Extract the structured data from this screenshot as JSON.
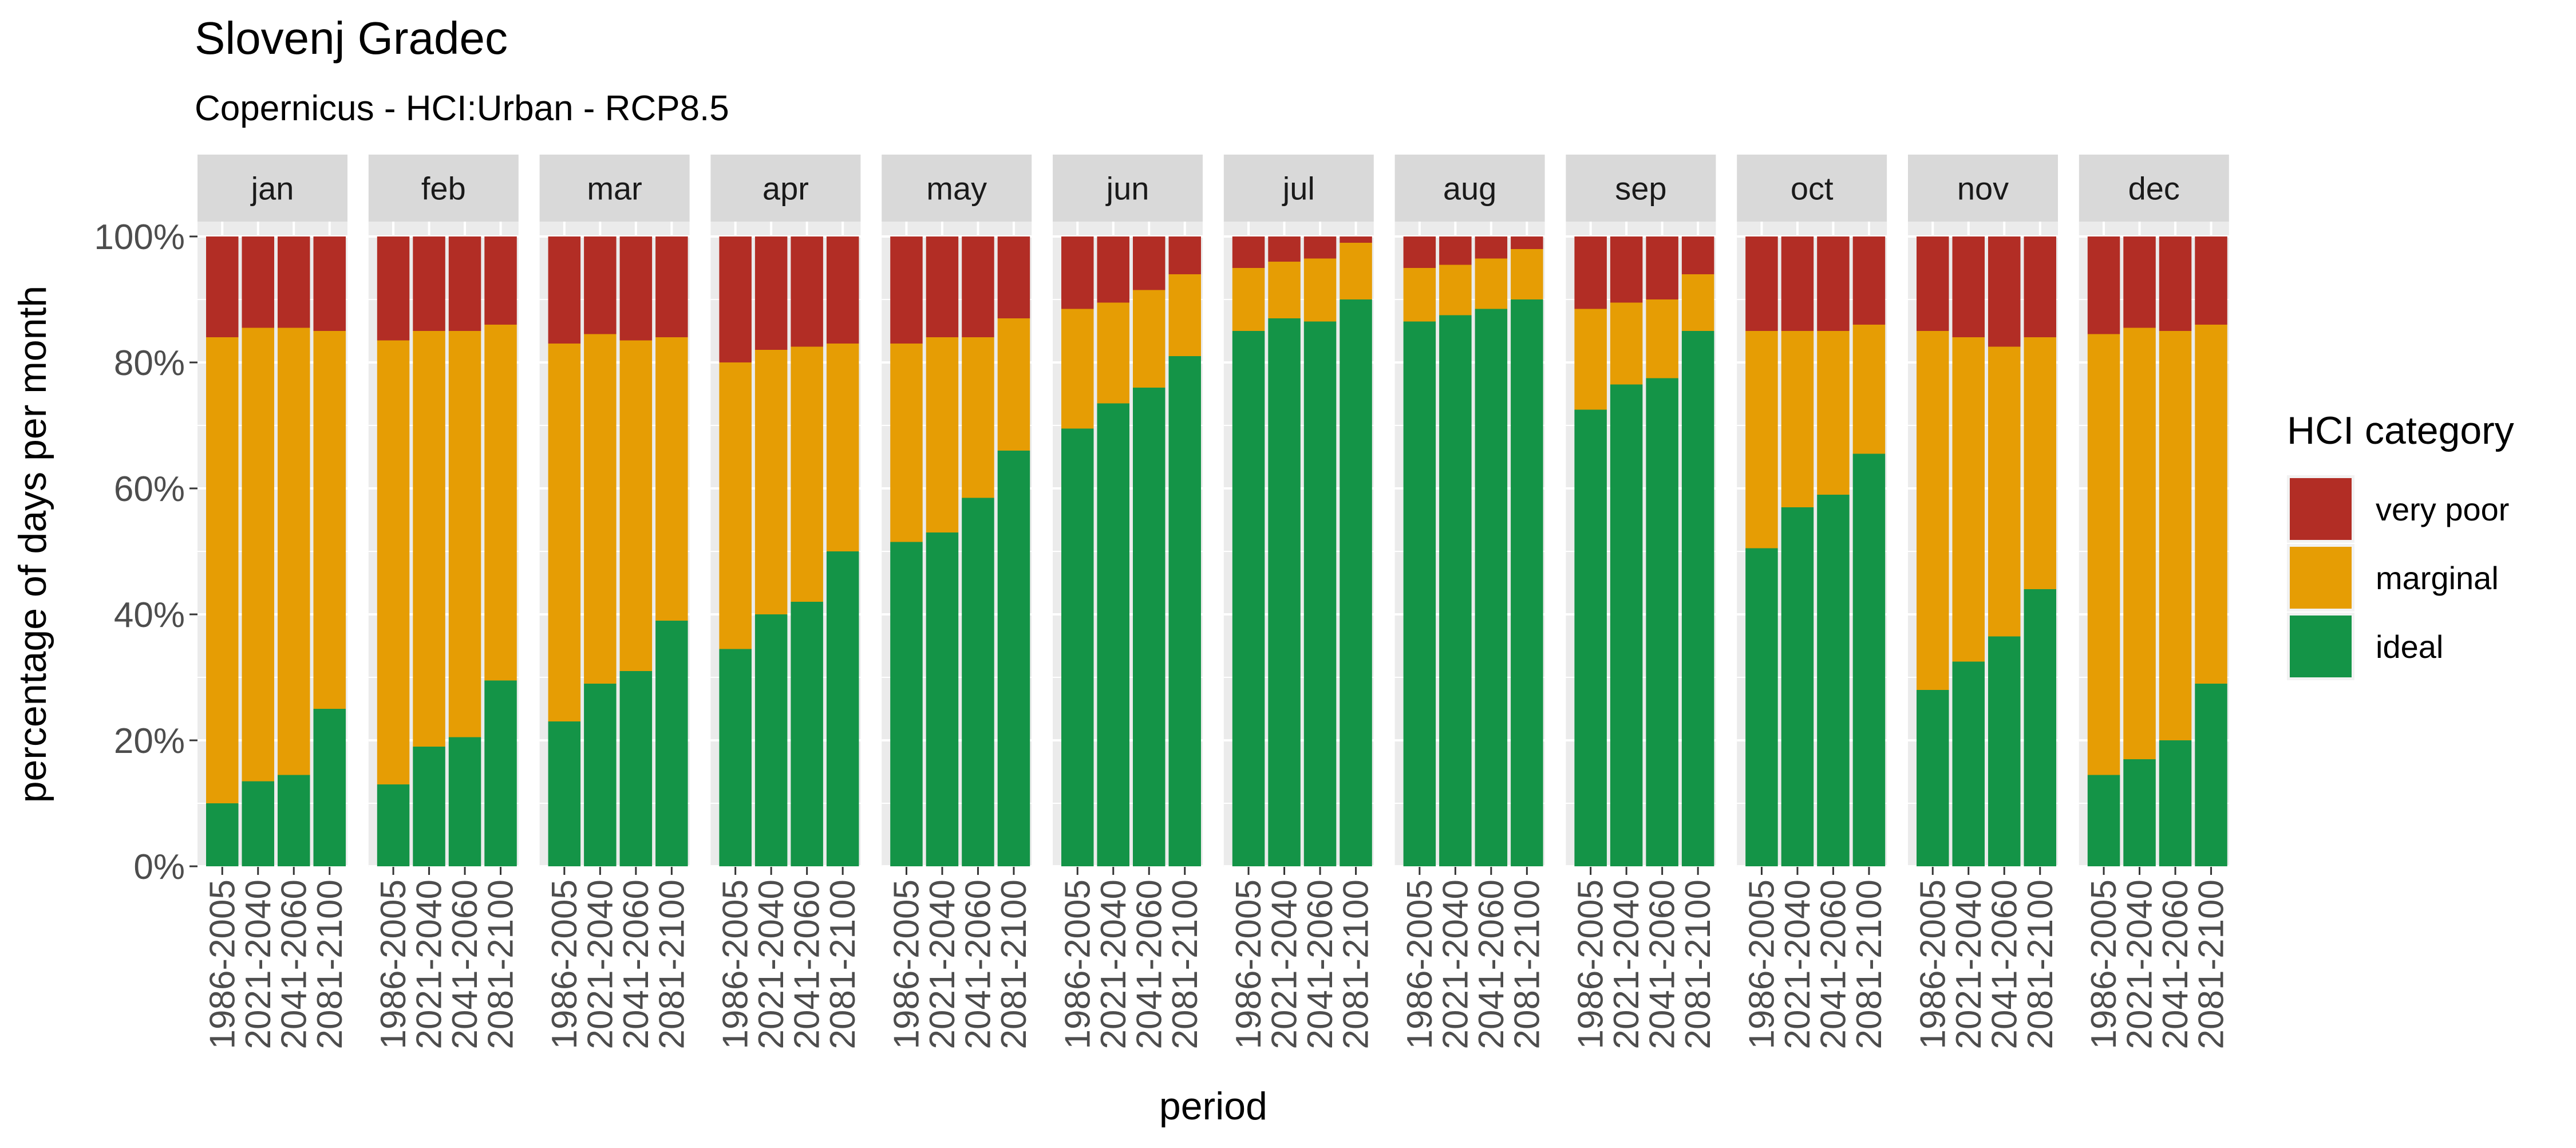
{
  "chart_data": {
    "type": "bar",
    "stacked": true,
    "percent": true,
    "title": "Slovenj Gradec",
    "subtitle": "Copernicus - HCI:Urban - RCP8.5",
    "xlabel": "period",
    "ylabel": "percentage of days per month",
    "ylim": [
      0,
      100
    ],
    "y_ticks": [
      "0%",
      "20%",
      "40%",
      "60%",
      "80%",
      "100%"
    ],
    "y_tick_values": [
      0,
      20,
      40,
      60,
      80,
      100
    ],
    "categories": [
      "1986-2005",
      "2021-2040",
      "2041-2060",
      "2081-2100"
    ],
    "legend": {
      "title": "HCI category",
      "placement": "right",
      "entries": [
        {
          "name": "very poor",
          "color": "#B22D25"
        },
        {
          "name": "marginal",
          "color": "#E69D04"
        },
        {
          "name": "ideal",
          "color": "#149447"
        }
      ]
    },
    "colors": {
      "very_poor": "#B22D25",
      "marginal": "#E69D04",
      "ideal": "#149447",
      "panel": "#EBEBEB",
      "strip": "#D9D9D9",
      "grid": "#FFFFFF"
    },
    "grid": true,
    "facets": [
      {
        "label": "jan",
        "ideal": [
          10,
          13.5,
          14.5,
          25
        ],
        "marginal": [
          74,
          72,
          71,
          60
        ],
        "very_poor": [
          16,
          14.5,
          14.5,
          15
        ]
      },
      {
        "label": "feb",
        "ideal": [
          13,
          19,
          20.5,
          29.5
        ],
        "marginal": [
          70.5,
          66,
          64.5,
          56.5
        ],
        "very_poor": [
          16.5,
          15,
          15,
          14
        ]
      },
      {
        "label": "mar",
        "ideal": [
          23,
          29,
          31,
          39
        ],
        "marginal": [
          60,
          55.5,
          52.5,
          45
        ],
        "very_poor": [
          17,
          15.5,
          16.5,
          16
        ]
      },
      {
        "label": "apr",
        "ideal": [
          34.5,
          40,
          42,
          50
        ],
        "marginal": [
          45.5,
          42,
          40.5,
          33
        ],
        "very_poor": [
          20,
          18,
          17.5,
          17
        ]
      },
      {
        "label": "may",
        "ideal": [
          51.5,
          53,
          58.5,
          66
        ],
        "marginal": [
          31.5,
          31,
          25.5,
          21
        ],
        "very_poor": [
          17,
          16,
          16,
          13
        ]
      },
      {
        "label": "jun",
        "ideal": [
          69.5,
          73.5,
          76,
          81
        ],
        "marginal": [
          19,
          16,
          15.5,
          13
        ],
        "very_poor": [
          11.5,
          10.5,
          8.5,
          6
        ]
      },
      {
        "label": "jul",
        "ideal": [
          85,
          87,
          86.5,
          90
        ],
        "marginal": [
          10,
          9,
          10,
          9
        ],
        "very_poor": [
          5,
          4,
          3.5,
          1
        ]
      },
      {
        "label": "aug",
        "ideal": [
          86.5,
          87.5,
          88.5,
          90
        ],
        "marginal": [
          8.5,
          8,
          8,
          8
        ],
        "very_poor": [
          5,
          4.5,
          3.5,
          2
        ]
      },
      {
        "label": "sep",
        "ideal": [
          72.5,
          76.5,
          77.5,
          85
        ],
        "marginal": [
          16,
          13,
          12.5,
          9
        ],
        "very_poor": [
          11.5,
          10.5,
          10,
          6
        ]
      },
      {
        "label": "oct",
        "ideal": [
          50.5,
          57,
          59,
          65.5
        ],
        "marginal": [
          34.5,
          28,
          26,
          20.5
        ],
        "very_poor": [
          15,
          15,
          15,
          14
        ]
      },
      {
        "label": "nov",
        "ideal": [
          28,
          32.5,
          36.5,
          44
        ],
        "marginal": [
          57,
          51.5,
          46,
          40
        ],
        "very_poor": [
          15,
          16,
          17.5,
          16
        ]
      },
      {
        "label": "dec",
        "ideal": [
          14.5,
          17,
          20,
          29
        ],
        "marginal": [
          70,
          68.5,
          65,
          57
        ],
        "very_poor": [
          15.5,
          14.5,
          15,
          14
        ]
      }
    ]
  }
}
